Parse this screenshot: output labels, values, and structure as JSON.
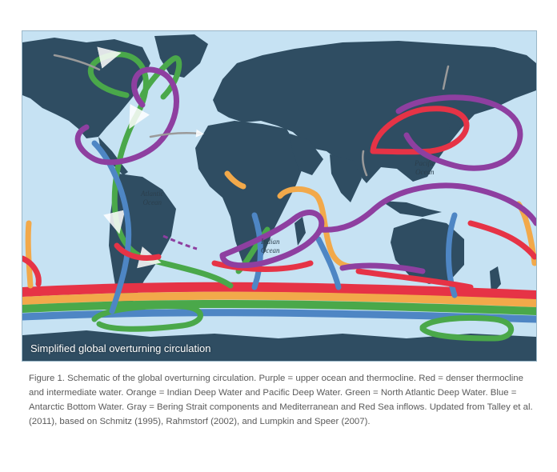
{
  "map": {
    "title": "Simplified global overturning circulation",
    "ocean_labels": {
      "atlantic": "Atlantic\nOcean",
      "indian": "Indian\nOcean",
      "pacific": "Pacific\nOcean"
    },
    "colors": {
      "ocean": "#c6e2f3",
      "land": "#2f4d62",
      "purple": "#8e3fa0",
      "red": "#e63346",
      "orange": "#f2a94a",
      "green": "#4aa84a",
      "blue": "#4e86c4",
      "gray": "#9a9a9a"
    }
  },
  "caption": "Figure 1. Schematic of the global overturning circulation. Purple = upper ocean and thermocline. Red = denser thermocline and intermediate water. Orange = Indian Deep Water and Pacific Deep Water. Green = North Atlantic Deep Water. Blue = Antarctic Bottom Water. Gray = Bering Strait components and Mediterranean and Red Sea inflows. Updated from Talley et al. (2011), based on Schmitz (1995), Rahmstorf (2002), and Lumpkin and Speer (2007)."
}
